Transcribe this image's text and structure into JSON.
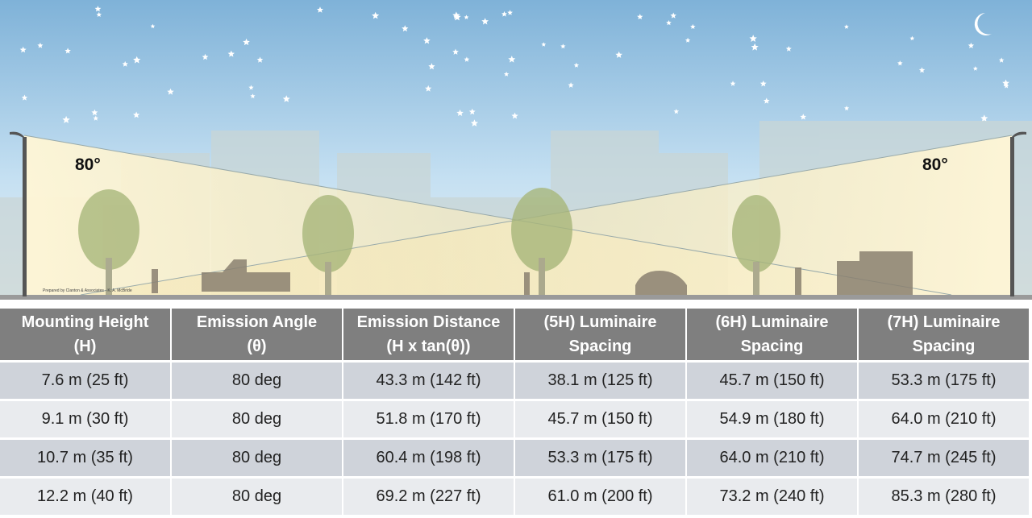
{
  "illustration": {
    "angle_labels": [
      "80°",
      "80°"
    ],
    "credit": "Prepared by Clanton & Associates - K. A. McBride"
  },
  "table": {
    "headers": [
      [
        "Mounting Height",
        "(H)"
      ],
      [
        "Emission Angle",
        "(θ)"
      ],
      [
        "Emission Distance",
        "(H x tan(θ))"
      ],
      [
        "(5H) Luminaire",
        "Spacing"
      ],
      [
        "(6H) Luminaire",
        "Spacing"
      ],
      [
        "(7H) Luminaire",
        "Spacing"
      ]
    ],
    "rows": [
      [
        "7.6 m (25 ft)",
        "80 deg",
        "43.3 m (142 ft)",
        "38.1 m (125 ft)",
        "45.7 m (150 ft)",
        "53.3 m (175 ft)"
      ],
      [
        "9.1 m (30 ft)",
        "80 deg",
        "51.8 m (170 ft)",
        "45.7 m (150 ft)",
        "54.9 m (180 ft)",
        "64.0 m (210 ft)"
      ],
      [
        "10.7 m (35 ft)",
        "80 deg",
        "60.4 m (198 ft)",
        "53.3 m (175 ft)",
        "64.0 m (210 ft)",
        "74.7 m (245 ft)"
      ],
      [
        "12.2 m (40 ft)",
        "80 deg",
        "69.2 m (227 ft)",
        "61.0 m (200 ft)",
        "73.2 m (240 ft)",
        "85.3 m (280 ft)"
      ]
    ]
  }
}
